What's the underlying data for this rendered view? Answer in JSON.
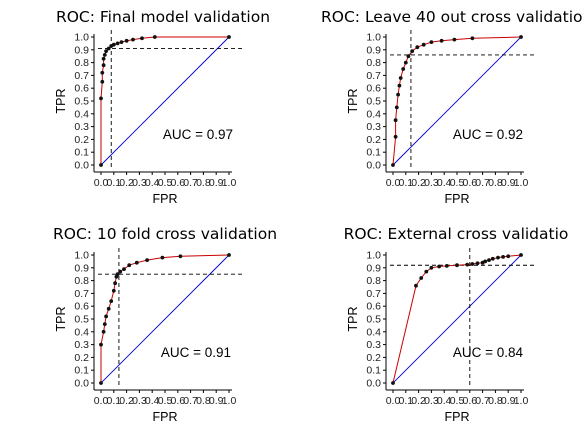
{
  "chart_data": [
    {
      "type": "line",
      "title": "ROC: Final model validation",
      "xlabel": "FPR",
      "ylabel": "TPR",
      "xlim": [
        0,
        1
      ],
      "ylim": [
        0,
        1
      ],
      "x_ticks": [
        "0.0",
        "0.1",
        "0.2",
        "0.3",
        "0.4",
        "0.5",
        "0.6",
        "0.7",
        "0.8",
        "0.9",
        "1.0"
      ],
      "y_ticks": [
        "0.0",
        "0.1",
        "0.2",
        "0.3",
        "0.4",
        "0.5",
        "0.6",
        "0.7",
        "0.8",
        "0.9",
        "1.0"
      ],
      "annotation": "AUC = 0.97",
      "series": [
        {
          "color": "#cc0000",
          "x": [
            0.0,
            0.0,
            0.01,
            0.01,
            0.02,
            0.02,
            0.03,
            0.04,
            0.06,
            0.08,
            0.1,
            0.13,
            0.16,
            0.2,
            0.25,
            0.32,
            0.42,
            1.0
          ],
          "y": [
            0.0,
            0.52,
            0.65,
            0.72,
            0.78,
            0.83,
            0.86,
            0.89,
            0.91,
            0.93,
            0.94,
            0.95,
            0.96,
            0.97,
            0.98,
            0.99,
            1.0,
            1.0
          ]
        }
      ],
      "diagonal_color": "#0000cc",
      "reference_lines": {
        "vertical_fpr": 0.08,
        "horizontal_tpr": 0.91
      }
    },
    {
      "type": "line",
      "title": "ROC: Leave 40 out cross validatio",
      "xlabel": "FPR",
      "ylabel": "TPR",
      "xlim": [
        0,
        1
      ],
      "ylim": [
        0,
        1
      ],
      "x_ticks": [
        "0.0",
        "0.1",
        "0.2",
        "0.3",
        "0.4",
        "0.5",
        "0.6",
        "0.7",
        "0.8",
        "0.9",
        "1.0"
      ],
      "y_ticks": [
        "0.0",
        "0.1",
        "0.2",
        "0.3",
        "0.4",
        "0.5",
        "0.6",
        "0.7",
        "0.8",
        "0.9",
        "1.0"
      ],
      "annotation": "AUC = 0.92",
      "series": [
        {
          "color": "#cc0000",
          "x": [
            0.0,
            0.02,
            0.02,
            0.03,
            0.04,
            0.05,
            0.06,
            0.08,
            0.1,
            0.12,
            0.15,
            0.19,
            0.24,
            0.3,
            0.38,
            0.48,
            0.62,
            1.0
          ],
          "y": [
            0.0,
            0.22,
            0.35,
            0.45,
            0.55,
            0.62,
            0.68,
            0.75,
            0.8,
            0.85,
            0.89,
            0.92,
            0.94,
            0.96,
            0.97,
            0.98,
            0.99,
            1.0
          ]
        }
      ],
      "diagonal_color": "#0000cc",
      "reference_lines": {
        "vertical_fpr": 0.14,
        "horizontal_tpr": 0.86
      }
    },
    {
      "type": "line",
      "title": "ROC: 10 fold cross validation",
      "xlabel": "FPR",
      "ylabel": "TPR",
      "xlim": [
        0,
        1
      ],
      "ylim": [
        0,
        1
      ],
      "x_ticks": [
        "0.0",
        "0.1",
        "0.2",
        "0.3",
        "0.4",
        "0.5",
        "0.6",
        "0.7",
        "0.8",
        "0.9",
        "1.0"
      ],
      "y_ticks": [
        "0.0",
        "0.1",
        "0.2",
        "0.3",
        "0.4",
        "0.5",
        "0.6",
        "0.7",
        "0.8",
        "0.9",
        "1.0"
      ],
      "annotation": "AUC = 0.91",
      "series": [
        {
          "color": "#cc0000",
          "x": [
            0.0,
            0.0,
            0.02,
            0.03,
            0.04,
            0.06,
            0.08,
            0.1,
            0.11,
            0.12,
            0.13,
            0.15,
            0.18,
            0.22,
            0.28,
            0.36,
            0.48,
            0.62,
            1.0
          ],
          "y": [
            0.0,
            0.3,
            0.4,
            0.46,
            0.52,
            0.58,
            0.64,
            0.72,
            0.78,
            0.83,
            0.85,
            0.87,
            0.89,
            0.92,
            0.94,
            0.96,
            0.98,
            0.99,
            1.0
          ]
        }
      ],
      "diagonal_color": "#0000cc",
      "reference_lines": {
        "vertical_fpr": 0.14,
        "horizontal_tpr": 0.85
      }
    },
    {
      "type": "line",
      "title": "ROC: External cross validatio",
      "xlabel": "FPR",
      "ylabel": "TPR",
      "xlim": [
        0,
        1
      ],
      "ylim": [
        0,
        1
      ],
      "x_ticks": [
        "0.0",
        "0.1",
        "0.2",
        "0.3",
        "0.4",
        "0.5",
        "0.6",
        "0.7",
        "0.8",
        "0.9",
        "1.0"
      ],
      "y_ticks": [
        "0.0",
        "0.1",
        "0.2",
        "0.3",
        "0.4",
        "0.5",
        "0.6",
        "0.7",
        "0.8",
        "0.9",
        "1.0"
      ],
      "annotation": "AUC = 0.84",
      "series": [
        {
          "color": "#cc0000",
          "x": [
            0.0,
            0.18,
            0.22,
            0.26,
            0.3,
            0.36,
            0.42,
            0.5,
            0.58,
            0.62,
            0.66,
            0.7,
            0.72,
            0.75,
            0.78,
            0.82,
            0.86,
            0.9,
            1.0
          ],
          "y": [
            0.0,
            0.76,
            0.82,
            0.87,
            0.9,
            0.91,
            0.915,
            0.92,
            0.925,
            0.93,
            0.935,
            0.94,
            0.95,
            0.96,
            0.97,
            0.98,
            0.985,
            0.99,
            1.0
          ]
        }
      ],
      "diagonal_color": "#0000cc",
      "reference_lines": {
        "vertical_fpr": 0.6,
        "horizontal_tpr": 0.92
      }
    }
  ]
}
